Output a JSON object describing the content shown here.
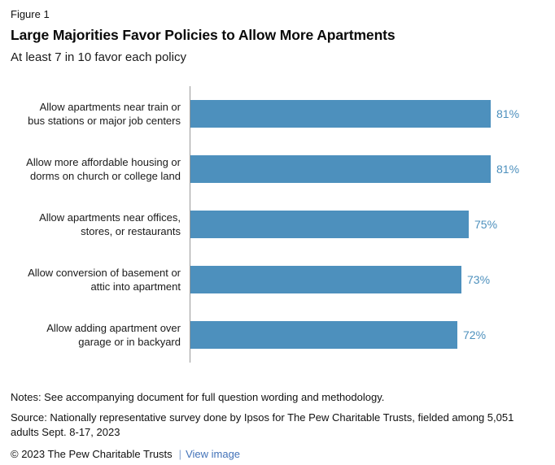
{
  "header": {
    "figure_label": "Figure 1",
    "title": "Large Majorities Favor Policies to Allow More Apartments",
    "subtitle": "At least 7 in 10 favor each policy"
  },
  "chart_data": {
    "type": "bar",
    "orientation": "horizontal",
    "title": "Large Majorities Favor Policies to Allow More Apartments",
    "subtitle": "At least 7 in 10 favor each policy",
    "categories": [
      "Allow apartments near train or bus stations or major job centers",
      "Allow more affordable housing or dorms on church or college land",
      "Allow apartments near offices, stores, or restaurants",
      "Allow conversion of basement or attic into apartment",
      "Allow adding apartment over garage or in backyard"
    ],
    "categories_wrapped": [
      [
        "Allow apartments near train or",
        "bus stations or major job centers"
      ],
      [
        "Allow more affordable housing or",
        "dorms on church or college land"
      ],
      [
        "Allow apartments near offices,",
        "stores, or restaurants"
      ],
      [
        "Allow conversion of basement or",
        "attic into apartment"
      ],
      [
        "Allow adding apartment over",
        "garage or in backyard"
      ]
    ],
    "values": [
      81,
      81,
      75,
      73,
      72
    ],
    "value_labels": [
      "81%",
      "81%",
      "75%",
      "73%",
      "72%"
    ],
    "xlim": [
      0,
      81
    ],
    "grid": false,
    "legend": false,
    "axis_line": "left-vertical"
  },
  "colors": {
    "bar": "#4d90bd",
    "value_label": "#4d90bd",
    "axis": "#9a9a9a",
    "link": "#4272b8",
    "pipe": "#8aa6d1",
    "text": "#1a1a1a"
  },
  "footer": {
    "notes": "Notes: See accompanying document for full question wording and methodology.",
    "source": "Source: Nationally representative survey done by Ipsos for The Pew Charitable Trusts, fielded among 5,051 adults Sept. 8-17, 2023",
    "copyright": "© 2023 The Pew Charitable Trusts",
    "separator": "|",
    "view_image_link": "View image"
  }
}
